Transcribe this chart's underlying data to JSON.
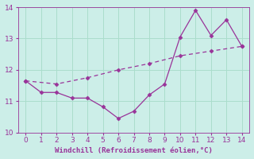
{
  "x_jagged": [
    0,
    1,
    2,
    3,
    4,
    5,
    6,
    7,
    8,
    9,
    10,
    11,
    12,
    13,
    14
  ],
  "y_jagged": [
    11.65,
    11.28,
    11.28,
    11.1,
    11.1,
    10.82,
    10.45,
    10.68,
    11.2,
    11.55,
    13.05,
    13.9,
    13.1,
    13.6,
    12.75
  ],
  "x_smooth": [
    0,
    2,
    4,
    6,
    8,
    10,
    12,
    14
  ],
  "y_smooth": [
    11.65,
    11.55,
    11.75,
    12.0,
    12.2,
    12.45,
    12.6,
    12.75
  ],
  "line_color": "#993399",
  "bg_color": "#cceee8",
  "grid_color": "#aaddcc",
  "xlabel": "Windchill (Refroidissement éolien,°C)",
  "xlabel_color": "#993399",
  "tick_color": "#993399",
  "xlim": [
    -0.5,
    14.5
  ],
  "ylim": [
    10,
    14
  ],
  "xticks": [
    0,
    1,
    2,
    3,
    4,
    5,
    6,
    7,
    8,
    9,
    10,
    11,
    12,
    13,
    14
  ],
  "yticks": [
    10,
    11,
    12,
    13,
    14
  ],
  "markersize": 2.5,
  "linewidth": 0.9
}
